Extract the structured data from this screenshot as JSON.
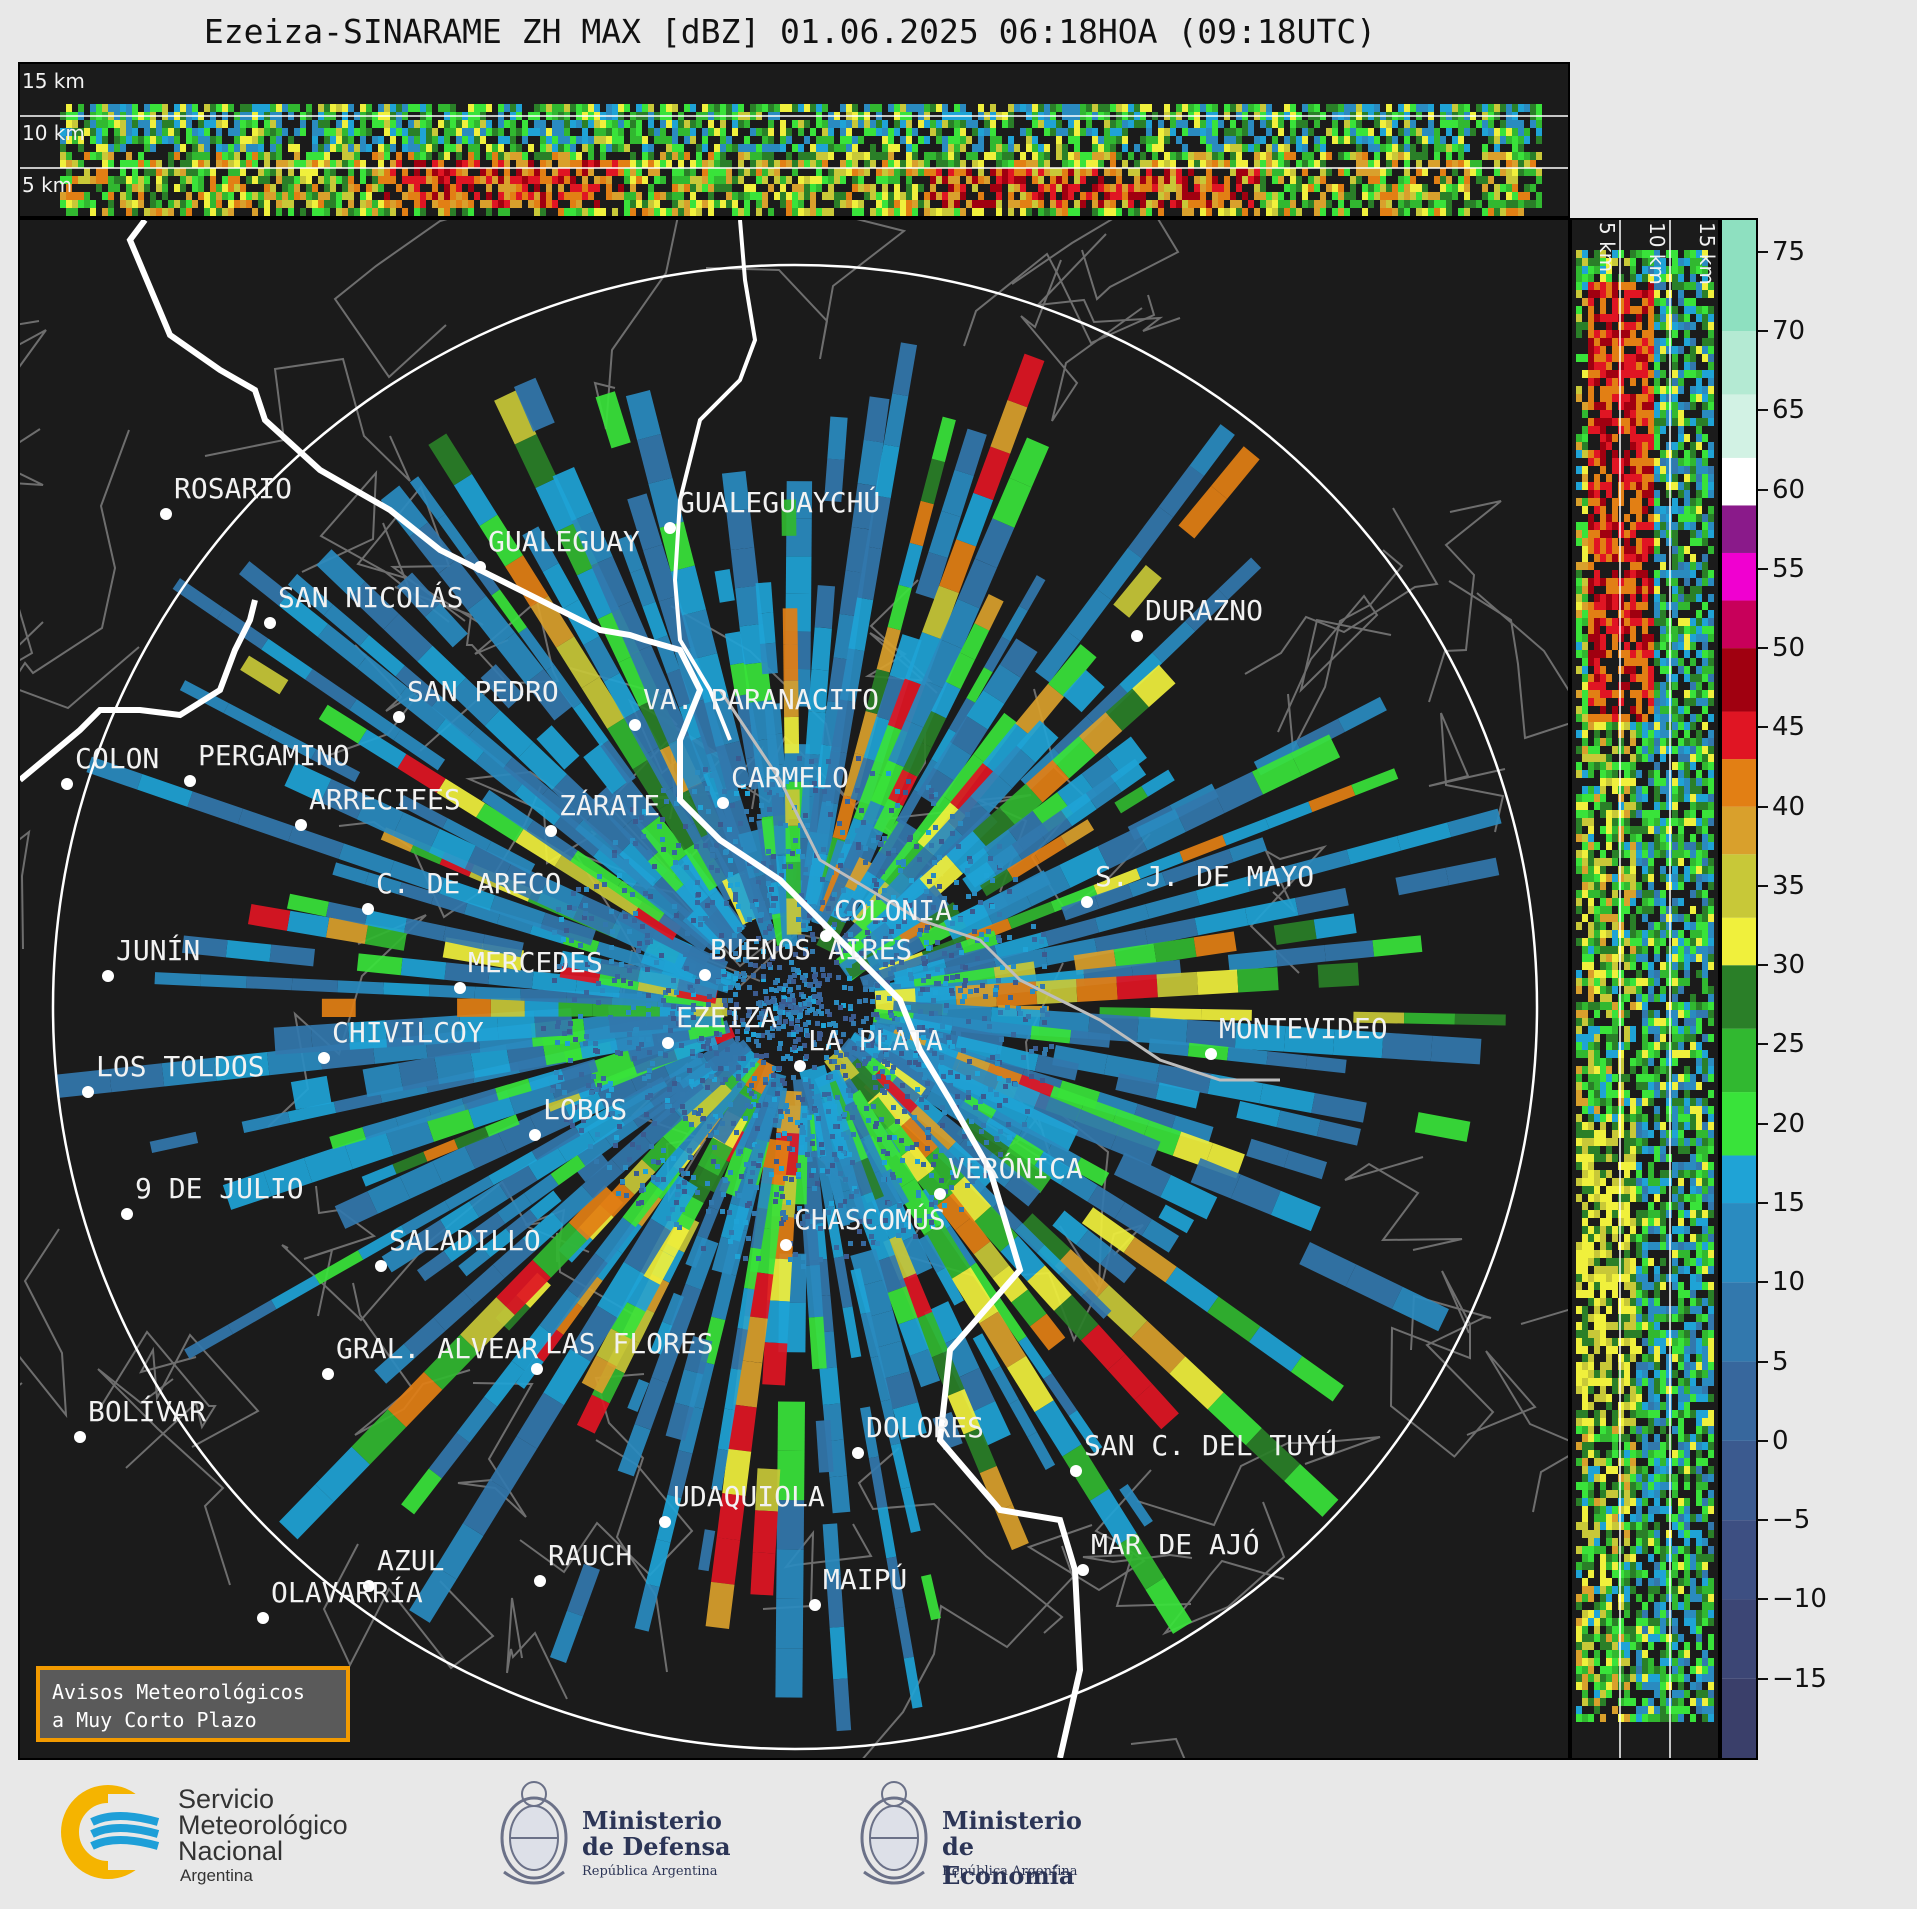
{
  "title": "Ezeiza-SINARAME ZH MAX [dBZ] 01.06.2025 06:18HOA (09:18UTC)",
  "top_panel": {
    "height_labels": [
      "15 km",
      "10 km",
      "5 km"
    ]
  },
  "right_panel": {
    "height_labels": [
      "5 km",
      "10 km",
      "15 km"
    ]
  },
  "cities": [
    {
      "name": "ROSARIO"
    },
    {
      "name": "GUALEGUAYCHÚ"
    },
    {
      "name": "GUALEGUAY"
    },
    {
      "name": "SAN NICOLÁS"
    },
    {
      "name": "DURAZNO"
    },
    {
      "name": "SAN PEDRO"
    },
    {
      "name": "VA. PARANACITO"
    },
    {
      "name": "COLON"
    },
    {
      "name": "PERGAMINO"
    },
    {
      "name": "CARMELO"
    },
    {
      "name": "ARRECIFES"
    },
    {
      "name": "ZÁRATE"
    },
    {
      "name": "S. J. DE MAYO"
    },
    {
      "name": "C. DE ARECO"
    },
    {
      "name": "COLONIA"
    },
    {
      "name": "JUNÍN"
    },
    {
      "name": "BUENOS AIRES"
    },
    {
      "name": "MERCEDES"
    },
    {
      "name": "EZEIZA"
    },
    {
      "name": "MONTEVIDEO"
    },
    {
      "name": "CHIVILCOY"
    },
    {
      "name": "LA PLATA"
    },
    {
      "name": "LOS TOLDOS"
    },
    {
      "name": "LOBOS"
    },
    {
      "name": "VERÓNICA"
    },
    {
      "name": "9 DE JULIO"
    },
    {
      "name": "CHASCOMÚS"
    },
    {
      "name": "SALADILLO"
    },
    {
      "name": "GRAL. ALVEAR"
    },
    {
      "name": "LAS FLORES"
    },
    {
      "name": "BOLÍVAR"
    },
    {
      "name": "DOLORES"
    },
    {
      "name": "SAN C. DEL TUYÚ"
    },
    {
      "name": "UDAQUIOLA"
    },
    {
      "name": "MAR DE AJÓ"
    },
    {
      "name": "AZUL"
    },
    {
      "name": "RAUCH"
    },
    {
      "name": "OLAVARRÍA"
    },
    {
      "name": "MAIPÚ"
    }
  ],
  "colorbar": {
    "unit": "dBZ",
    "tick_labels": [
      "75",
      "70",
      "65",
      "60",
      "55",
      "50",
      "45",
      "40",
      "35",
      "30",
      "25",
      "20",
      "15",
      "10",
      "5",
      "0",
      "−5",
      "−10",
      "−15"
    ],
    "tick_values": [
      75,
      70,
      65,
      60,
      55,
      50,
      45,
      40,
      35,
      30,
      25,
      20,
      15,
      10,
      5,
      0,
      -5,
      -10,
      -15
    ],
    "range": [
      -20,
      77
    ],
    "bands": [
      {
        "from": -20,
        "to": -15,
        "color": "#3a3f6a"
      },
      {
        "from": -15,
        "to": -10,
        "color": "#3c4675"
      },
      {
        "from": -10,
        "to": -5,
        "color": "#3d4f82"
      },
      {
        "from": -5,
        "to": 0,
        "color": "#3b5a8f"
      },
      {
        "from": 0,
        "to": 5,
        "color": "#37679d"
      },
      {
        "from": 5,
        "to": 10,
        "color": "#3278ad"
      },
      {
        "from": 10,
        "to": 15,
        "color": "#2a8bc0"
      },
      {
        "from": 15,
        "to": 18,
        "color": "#1fa3d6"
      },
      {
        "from": 18,
        "to": 22,
        "color": "#39e33a"
      },
      {
        "from": 22,
        "to": 26,
        "color": "#31b830"
      },
      {
        "from": 26,
        "to": 30,
        "color": "#2a7f28"
      },
      {
        "from": 30,
        "to": 33,
        "color": "#f0f03c"
      },
      {
        "from": 33,
        "to": 37,
        "color": "#c8c838"
      },
      {
        "from": 37,
        "to": 40,
        "color": "#d9a02c"
      },
      {
        "from": 40,
        "to": 43,
        "color": "#e27f14"
      },
      {
        "from": 43,
        "to": 46,
        "color": "#e01523"
      },
      {
        "from": 46,
        "to": 50,
        "color": "#a00010"
      },
      {
        "from": 50,
        "to": 53,
        "color": "#c8005a"
      },
      {
        "from": 53,
        "to": 56,
        "color": "#f000d0"
      },
      {
        "from": 56,
        "to": 59,
        "color": "#8a1a8a"
      },
      {
        "from": 59,
        "to": 62,
        "color": "#ffffff"
      },
      {
        "from": 62,
        "to": 66,
        "color": "#d2f2e4"
      },
      {
        "from": 66,
        "to": 70,
        "color": "#b4ead3"
      },
      {
        "from": 70,
        "to": 77,
        "color": "#8ee0c0"
      }
    ]
  },
  "notice": {
    "line1": "Avisos Meteorológicos",
    "line2": "a Muy Corto Plazo"
  },
  "logos": {
    "smn": {
      "line1": "Servicio",
      "line2": "Meteorológico",
      "line3": "Nacional",
      "line4": "Argentina"
    },
    "defensa": {
      "line1": "Ministerio",
      "line2": "de Defensa",
      "line3": "República Argentina"
    },
    "economia": {
      "line1": "Ministerio",
      "line2": "de Economía",
      "line3": "República Argentina"
    }
  },
  "colors": {
    "panel_bg": "#1b1b1b",
    "accent_orange": "#f29a00",
    "smn_blue": "#1e9fd8",
    "smn_yellow": "#f5b400"
  }
}
